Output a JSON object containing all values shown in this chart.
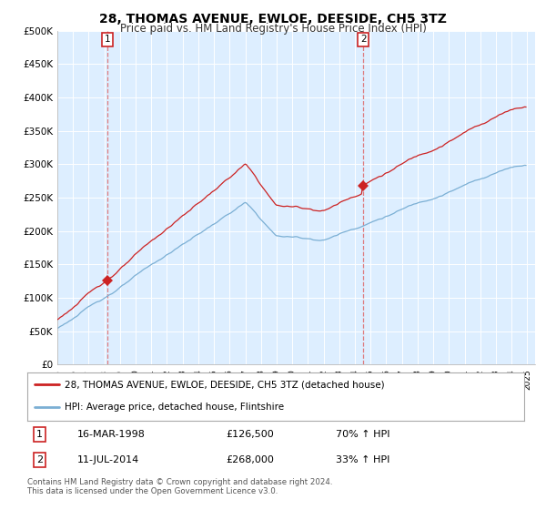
{
  "title": "28, THOMAS AVENUE, EWLOE, DEESIDE, CH5 3TZ",
  "subtitle": "Price paid vs. HM Land Registry's House Price Index (HPI)",
  "ylim": [
    0,
    500000
  ],
  "yticks": [
    0,
    50000,
    100000,
    150000,
    200000,
    250000,
    300000,
    350000,
    400000,
    450000,
    500000
  ],
  "ytick_labels": [
    "£0",
    "£50K",
    "£100K",
    "£150K",
    "£200K",
    "£250K",
    "£300K",
    "£350K",
    "£400K",
    "£450K",
    "£500K"
  ],
  "hpi_color": "#7bafd4",
  "price_color": "#cc2222",
  "vline_color": "#dd6666",
  "marker1_x": 1998.21,
  "marker2_x": 2014.54,
  "marker1_price": 126500,
  "marker2_price": 268000,
  "legend_line1": "28, THOMAS AVENUE, EWLOE, DEESIDE, CH5 3TZ (detached house)",
  "legend_line2": "HPI: Average price, detached house, Flintshire",
  "table_row1": [
    "1",
    "16-MAR-1998",
    "£126,500",
    "70% ↑ HPI"
  ],
  "table_row2": [
    "2",
    "11-JUL-2014",
    "£268,000",
    "33% ↑ HPI"
  ],
  "footnote1": "Contains HM Land Registry data © Crown copyright and database right 2024.",
  "footnote2": "This data is licensed under the Open Government Licence v3.0.",
  "background_color": "#ffffff",
  "plot_bg_color": "#ddeeff",
  "grid_color": "#ffffff",
  "title_fontsize": 10,
  "subtitle_fontsize": 8.5
}
